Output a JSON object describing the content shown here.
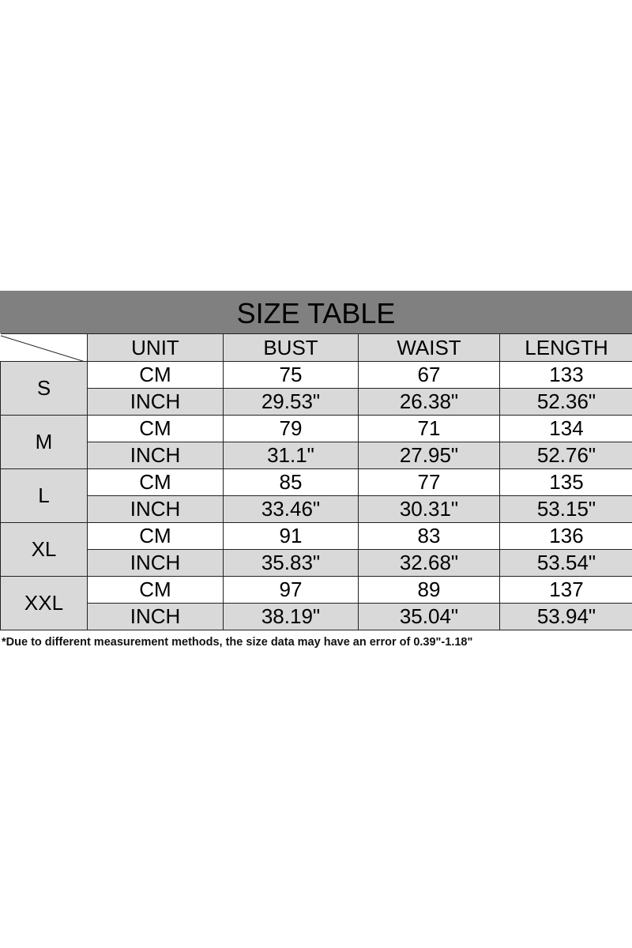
{
  "title": "SIZE TABLE",
  "headers": [
    "UNIT",
    "BUST",
    "WAIST",
    "LENGTH"
  ],
  "rows": [
    {
      "size": "S",
      "cm": {
        "unit": "CM",
        "bust": "75",
        "waist": "67",
        "length": "133"
      },
      "inch": {
        "unit": "INCH",
        "bust": "29.53\"",
        "waist": "26.38\"",
        "length": "52.36\""
      }
    },
    {
      "size": "M",
      "cm": {
        "unit": "CM",
        "bust": "79",
        "waist": "71",
        "length": "134"
      },
      "inch": {
        "unit": "INCH",
        "bust": "31.1\"",
        "waist": "27.95\"",
        "length": "52.76\""
      }
    },
    {
      "size": "L",
      "cm": {
        "unit": "CM",
        "bust": "85",
        "waist": "77",
        "length": "135"
      },
      "inch": {
        "unit": "INCH",
        "bust": "33.46\"",
        "waist": "30.31\"",
        "length": "53.15\""
      }
    },
    {
      "size": "XL",
      "cm": {
        "unit": "CM",
        "bust": "91",
        "waist": "83",
        "length": "136"
      },
      "inch": {
        "unit": "INCH",
        "bust": "35.83\"",
        "waist": "32.68\"",
        "length": "53.54\""
      }
    },
    {
      "size": "XXL",
      "cm": {
        "unit": "CM",
        "bust": "97",
        "waist": "89",
        "length": "137"
      },
      "inch": {
        "unit": "INCH",
        "bust": "38.19\"",
        "waist": "35.04\"",
        "length": "53.94\""
      }
    }
  ],
  "note": "*Due to different measurement methods, the size data may have an error of 0.39\"-1.18\"",
  "colors": {
    "title_bar": "#808080",
    "shaded_cell": "#d9d9d9"
  }
}
